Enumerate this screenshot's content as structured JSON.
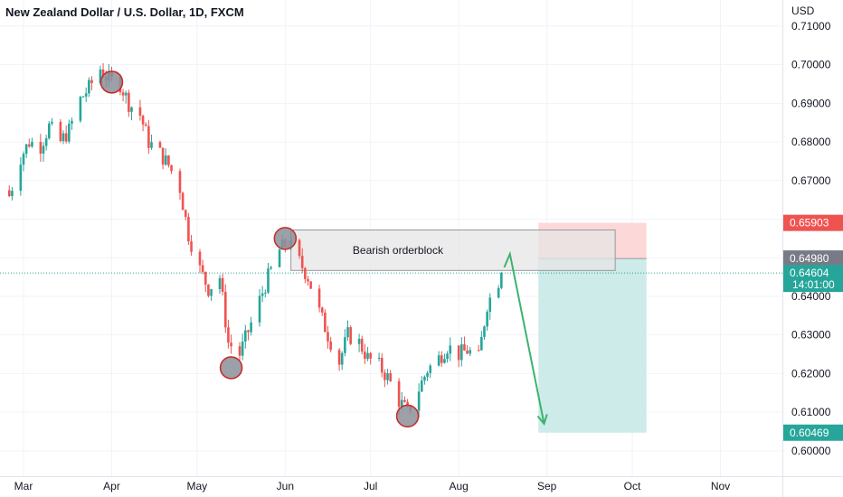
{
  "header": {
    "title": "New Zealand Dollar / U.S. Dollar, 1D, FXCM",
    "currency": "USD"
  },
  "colors": {
    "up": "#26a69a",
    "down": "#ef5350",
    "arrow": "#3cb371",
    "stop_zone": "#fdd8d8",
    "target_zone": "#cdebe8",
    "orderblock_fill": "#e6e6e6",
    "orderblock_stroke": "#9598a1",
    "circle_fill": "#8b8f99",
    "circle_stroke": "#c62828"
  },
  "chart_data": {
    "type": "candlestick",
    "ylim": [
      0.5975,
      0.7115
    ],
    "y_ticks": [
      "0.60000",
      "0.61000",
      "0.62000",
      "0.63000",
      "0.64000",
      "0.65000",
      "0.66000",
      "0.67000",
      "0.68000",
      "0.69000",
      "0.70000",
      "0.71000"
    ],
    "x_ticks": [
      "Mar",
      "Apr",
      "May",
      "Jun",
      "Jul",
      "Aug",
      "Sep",
      "Oct",
      "Nov"
    ],
    "x_tick_dates": [
      "2022-03-01",
      "2022-04-01",
      "2022-05-01",
      "2022-06-01",
      "2022-07-01",
      "2022-08-01",
      "2022-09-01",
      "2022-10-01",
      "2022-11-01"
    ],
    "close_series": [
      [
        "2022-02-24",
        0.666
      ],
      [
        "2022-02-28",
        0.676
      ],
      [
        "2022-03-03",
        0.68
      ],
      [
        "2022-03-07",
        0.679
      ],
      [
        "2022-03-10",
        0.684
      ],
      [
        "2022-03-14",
        0.68
      ],
      [
        "2022-03-17",
        0.683
      ],
      [
        "2022-03-21",
        0.691
      ],
      [
        "2022-03-24",
        0.694
      ],
      [
        "2022-03-28",
        0.699
      ],
      [
        "2022-03-31",
        0.696
      ],
      [
        "2022-04-04",
        0.695
      ],
      [
        "2022-04-07",
        0.69
      ],
      [
        "2022-04-11",
        0.687
      ],
      [
        "2022-04-14",
        0.68
      ],
      [
        "2022-04-18",
        0.677
      ],
      [
        "2022-04-21",
        0.674
      ],
      [
        "2022-04-25",
        0.668
      ],
      [
        "2022-04-28",
        0.656
      ],
      [
        "2022-05-02",
        0.647
      ],
      [
        "2022-05-05",
        0.642
      ],
      [
        "2022-05-09",
        0.645
      ],
      [
        "2022-05-12",
        0.628
      ],
      [
        "2022-05-16",
        0.625
      ],
      [
        "2022-05-19",
        0.631
      ],
      [
        "2022-05-23",
        0.639
      ],
      [
        "2022-05-26",
        0.645
      ],
      [
        "2022-05-30",
        0.652
      ],
      [
        "2022-06-02",
        0.654
      ],
      [
        "2022-06-06",
        0.649
      ],
      [
        "2022-06-09",
        0.645
      ],
      [
        "2022-06-13",
        0.636
      ],
      [
        "2022-06-16",
        0.63
      ],
      [
        "2022-06-20",
        0.623
      ],
      [
        "2022-06-23",
        0.63
      ],
      [
        "2022-06-27",
        0.628
      ],
      [
        "2022-06-30",
        0.624
      ],
      [
        "2022-07-04",
        0.622
      ],
      [
        "2022-07-07",
        0.619
      ],
      [
        "2022-07-11",
        0.613
      ],
      [
        "2022-07-14",
        0.61
      ],
      [
        "2022-07-18",
        0.616
      ],
      [
        "2022-07-21",
        0.621
      ],
      [
        "2022-07-25",
        0.624
      ],
      [
        "2022-07-28",
        0.627
      ],
      [
        "2022-08-01",
        0.625
      ],
      [
        "2022-08-04",
        0.626
      ],
      [
        "2022-08-08",
        0.624
      ],
      [
        "2022-08-11",
        0.638
      ],
      [
        "2022-08-15",
        0.644
      ],
      [
        "2022-08-16",
        0.646
      ]
    ],
    "swing_circles": [
      {
        "date": "2022-04-01",
        "price": 0.6955
      },
      {
        "date": "2022-05-13",
        "price": 0.6215
      },
      {
        "date": "2022-06-01",
        "price": 0.655
      },
      {
        "date": "2022-07-14",
        "price": 0.609
      }
    ],
    "orderblock": {
      "label": "Bearish orderblock",
      "start": "2022-06-03",
      "end": "2022-09-25",
      "top": 0.6572,
      "bottom": 0.6467
    },
    "arrow_path": [
      [
        "2022-08-17",
        0.6475
      ],
      [
        "2022-08-19",
        0.651
      ],
      [
        "2022-08-31",
        0.607
      ]
    ],
    "position": {
      "start": "2022-08-29",
      "end": "2022-10-06",
      "stop": 0.65903,
      "entry": 0.6498,
      "target": 0.60469
    },
    "price_labels": [
      {
        "value": "0.65903",
        "price": 0.65903,
        "color": "#ef5350"
      },
      {
        "value": "0.64980",
        "price": 0.6498,
        "color": "#787b86"
      },
      {
        "value": "0.64604",
        "price": 0.64604,
        "color": "#26a69a",
        "sub": "14:01:00"
      },
      {
        "value": "0.60469",
        "price": 0.60469,
        "color": "#26a69a"
      }
    ],
    "last_price": 0.64604
  }
}
